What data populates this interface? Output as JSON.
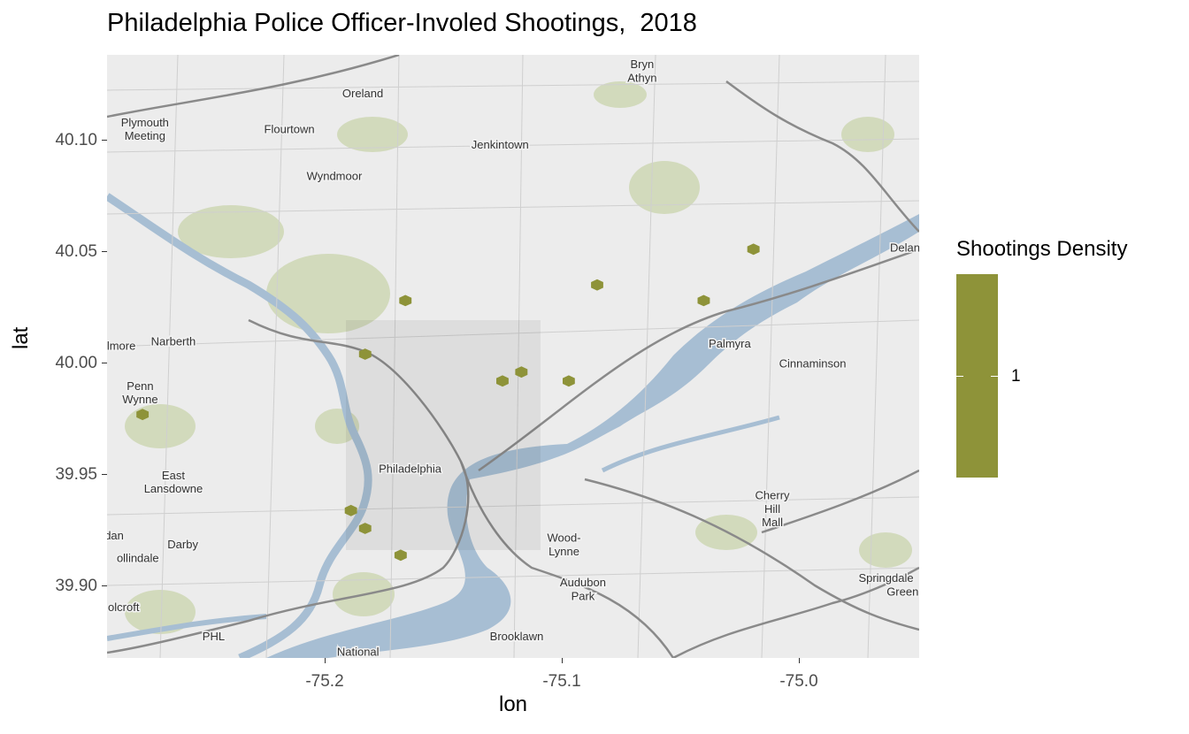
{
  "title": "Philadelphia Police Officer-Involed Shootings,  2018",
  "chart_data": {
    "type": "map",
    "title": "Philadelphia Police Officer-Involed Shootings,  2018",
    "xlabel": "lon",
    "ylabel": "lat",
    "xlim": [
      -75.291,
      -74.948
    ],
    "ylim": [
      39.867,
      40.137
    ],
    "x_ticks": [
      -75.2,
      -75.1,
      -75.0
    ],
    "x_tick_labels": [
      "-75.2",
      "-75.1",
      "-75.0"
    ],
    "y_ticks": [
      39.9,
      39.95,
      40.0,
      40.05,
      40.1
    ],
    "y_tick_labels": [
      "39.90",
      "39.95",
      "40.00",
      "40.05",
      "40.10"
    ],
    "fill_color": "#8e9339",
    "legend": {
      "title": "Shootings Density",
      "labels": [
        "1"
      ],
      "placement": "right"
    },
    "points": [
      {
        "lon": -75.018,
        "lat": 40.05
      },
      {
        "lon": -75.084,
        "lat": 40.034
      },
      {
        "lon": -75.039,
        "lat": 40.027
      },
      {
        "lon": -75.165,
        "lat": 40.027
      },
      {
        "lon": -75.182,
        "lat": 40.003
      },
      {
        "lon": -75.116,
        "lat": 39.995
      },
      {
        "lon": -75.124,
        "lat": 39.991
      },
      {
        "lon": -75.096,
        "lat": 39.991
      },
      {
        "lon": -75.276,
        "lat": 39.976
      },
      {
        "lon": -75.188,
        "lat": 39.933
      },
      {
        "lon": -75.182,
        "lat": 39.925
      },
      {
        "lon": -75.167,
        "lat": 39.913
      }
    ]
  },
  "map": {
    "water_color": "#a7bed3",
    "land_color": "#ededed",
    "places": [
      {
        "name": "Bryn",
        "lon": -75.065,
        "lat": 40.131
      },
      {
        "name": "Athyn",
        "lon": -75.065,
        "lat": 40.125
      },
      {
        "name": "Oreland",
        "lon": -75.183,
        "lat": 40.118
      },
      {
        "name": "Plymouth",
        "lon": -75.275,
        "lat": 40.105
      },
      {
        "name": "Meeting",
        "lon": -75.275,
        "lat": 40.099
      },
      {
        "name": "Flourtown",
        "lon": -75.214,
        "lat": 40.102
      },
      {
        "name": "Jenkintown",
        "lon": -75.125,
        "lat": 40.095
      },
      {
        "name": "Wyndmoor",
        "lon": -75.195,
        "lat": 40.081
      },
      {
        "name": "Delan",
        "lon": -74.954,
        "lat": 40.049
      },
      {
        "name": "Palmyra",
        "lon": -75.028,
        "lat": 40.006
      },
      {
        "name": "Cinnaminson",
        "lon": -74.993,
        "lat": 39.997
      },
      {
        "name": "Narberth",
        "lon": -75.263,
        "lat": 40.007
      },
      {
        "name": "lmore",
        "lon": -75.285,
        "lat": 40.005
      },
      {
        "name": "Penn",
        "lon": -75.277,
        "lat": 39.987
      },
      {
        "name": "Wynne",
        "lon": -75.277,
        "lat": 39.981
      },
      {
        "name": "Philadelphia",
        "lon": -75.163,
        "lat": 39.95
      },
      {
        "name": "East",
        "lon": -75.263,
        "lat": 39.947
      },
      {
        "name": "Lansdowne",
        "lon": -75.263,
        "lat": 39.941
      },
      {
        "name": "Cherry",
        "lon": -75.01,
        "lat": 39.938
      },
      {
        "name": "Hill",
        "lon": -75.01,
        "lat": 39.932
      },
      {
        "name": "Mall",
        "lon": -75.01,
        "lat": 39.926
      },
      {
        "name": "dan",
        "lon": -75.288,
        "lat": 39.92
      },
      {
        "name": "Darby",
        "lon": -75.259,
        "lat": 39.916
      },
      {
        "name": "ollindale",
        "lon": -75.278,
        "lat": 39.91
      },
      {
        "name": "Wood-",
        "lon": -75.098,
        "lat": 39.919
      },
      {
        "name": "Lynne",
        "lon": -75.098,
        "lat": 39.913
      },
      {
        "name": "Springdale",
        "lon": -74.962,
        "lat": 39.901
      },
      {
        "name": "Green",
        "lon": -74.955,
        "lat": 39.895
      },
      {
        "name": "Audubon",
        "lon": -75.09,
        "lat": 39.899
      },
      {
        "name": "Park",
        "lon": -75.09,
        "lat": 39.893
      },
      {
        "name": "olcroft",
        "lon": -75.284,
        "lat": 39.888
      },
      {
        "name": "Brooklawn",
        "lon": -75.118,
        "lat": 39.875
      },
      {
        "name": "PHL",
        "lon": -75.246,
        "lat": 39.875
      },
      {
        "name": "National",
        "lon": -75.185,
        "lat": 39.868
      }
    ]
  }
}
